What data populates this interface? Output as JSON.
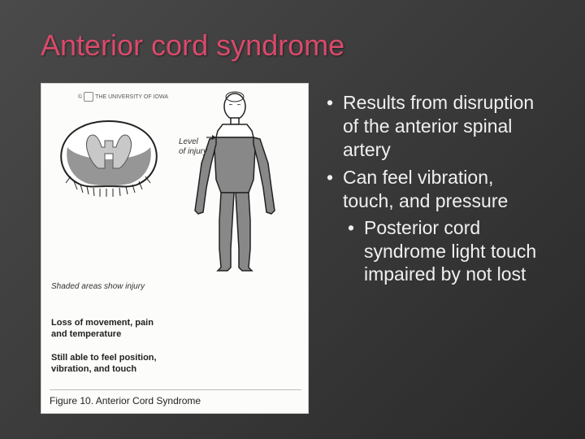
{
  "title": "Anterior cord syndrome",
  "figure": {
    "attribution": "THE UNIVERSITY OF IOWA",
    "injury_label": "Level\nof injury",
    "shaded_note": "Shaded areas show injury",
    "loss_note": "Loss of movement, pain\nand temperature",
    "still_note": "Still able to feel position,\nvibration, and touch",
    "caption": "Figure 10.   Anterior Cord Syndrome",
    "colors": {
      "panel_bg": "#fcfcfa",
      "outline": "#222222",
      "shaded_fill": "#969696",
      "body_shade": "#888888"
    }
  },
  "bullets": {
    "item1": "Results from disruption of the anterior spinal artery",
    "item2": "Can feel vibration, touch, and pressure",
    "sub1": "Posterior cord syndrome light touch impaired by not lost"
  },
  "style": {
    "title_color": "#d94a6a",
    "text_color": "#f0f0f0",
    "bg_gradient_start": "#4a4a4a",
    "bg_gradient_end": "#2a2a2a",
    "title_fontsize": 36,
    "bullet_fontsize": 23
  }
}
